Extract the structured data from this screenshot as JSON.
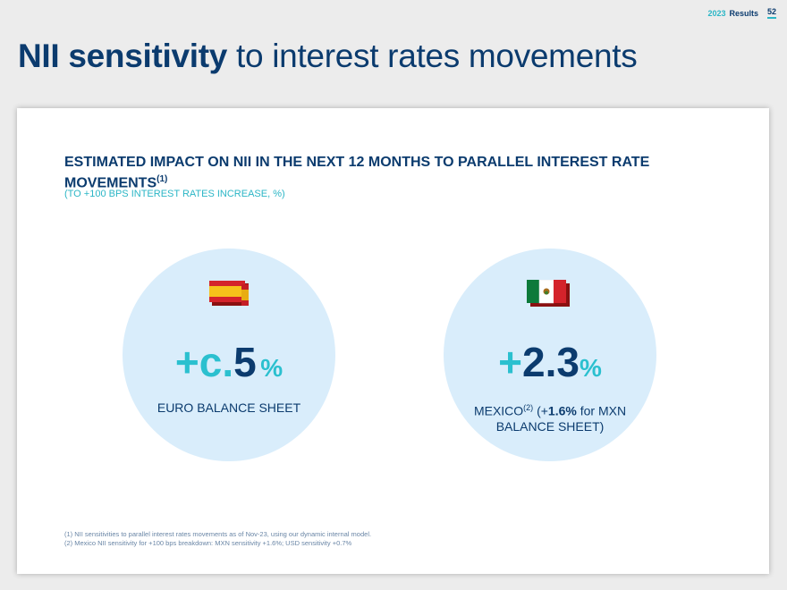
{
  "header": {
    "year": "2023",
    "results_label": "Results",
    "page_number": "52"
  },
  "title": {
    "bold": "NII sensitivity",
    "rest": "to interest rates movements"
  },
  "card": {
    "heading": "ESTIMATED IMPACT ON NII IN THE NEXT 12 MONTHS TO PARALLEL INTEREST RATE MOVEMENTS",
    "heading_note": "(1)",
    "subheading": "(TO +100 BPS INTEREST RATES INCREASE, %)",
    "euro": {
      "flag_icon": "spain-flag-icon",
      "sign": "+",
      "prefix": "c",
      "value": "5",
      "unit": "%",
      "label": "EURO BALANCE SHEET"
    },
    "mexico": {
      "flag_icon": "mexico-flag-icon",
      "sign": "+",
      "value": "2.3",
      "unit": "%",
      "label_main": "MEXICO",
      "label_note": "(2)",
      "label_open": "(+",
      "label_mxn_value": "1.6%",
      "label_rest": "for MXN BALANCE SHEET)"
    },
    "footnotes": [
      "(1) NII sensitivities to parallel interest rates movements as of Nov-23, using our dynamic internal model.",
      "(2) Mexico NII sensitivity for +100 bps breakdown: MXN sensitivity +1.6%; USD sensitivity +0.7%"
    ]
  },
  "colors": {
    "navy": "#0b3b6e",
    "teal": "#2bc0cf",
    "circle": "#d9edfb"
  }
}
